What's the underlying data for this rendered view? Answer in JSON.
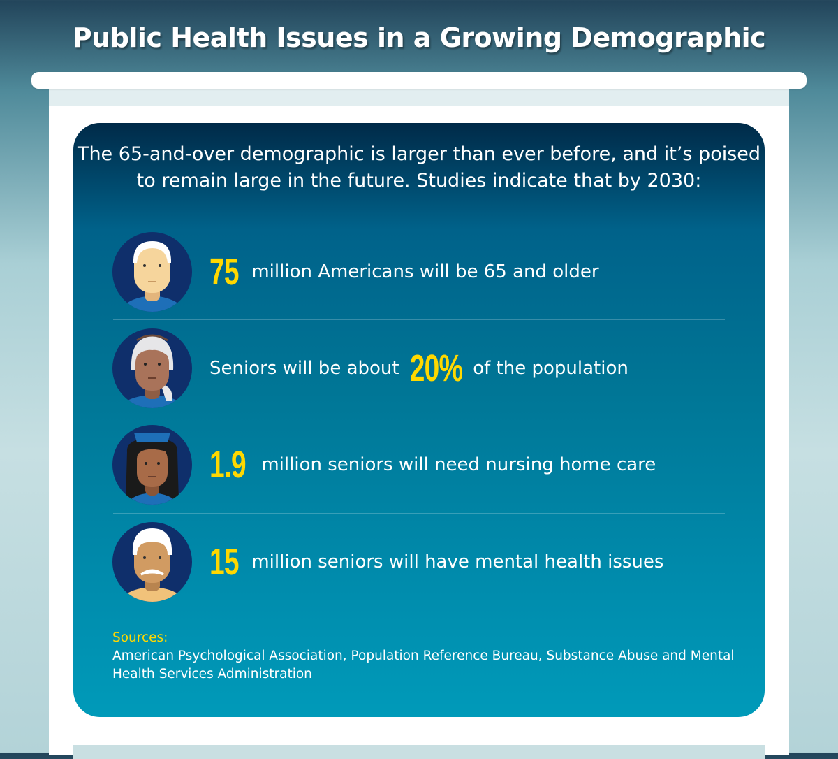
{
  "title": "Public Health Issues in a Growing Demographic",
  "intro": "The 65-and-over demographic is larger than ever before, and it’s poised to remain large in the future. Studies indicate that by 2030:",
  "stats": [
    {
      "prefix": "",
      "number": "75",
      "suffix": " million Americans will be 65 and older",
      "icon": "older-man-avatar-icon"
    },
    {
      "prefix": "Seniors will be about ",
      "number": "20%",
      "suffix": " of the population",
      "icon": "older-woman-avatar-icon"
    },
    {
      "prefix": "",
      "number": "1.9",
      "suffix": " million seniors will need nursing home care",
      "icon": "nurse-avatar-icon"
    },
    {
      "prefix": "",
      "number": "15",
      "suffix": " million seniors will have mental health issues",
      "icon": "mustache-man-avatar-icon"
    }
  ],
  "sources": {
    "label": "Sources:",
    "text": "American Psychological Association, Population Reference Bureau, Substance Abuse and Mental Health Services Administration"
  },
  "colors": {
    "accent": "#ffd800",
    "panel_top": "#002a48",
    "panel_bottom": "#009ab9",
    "avatar_bg": "#0f2f6b"
  }
}
